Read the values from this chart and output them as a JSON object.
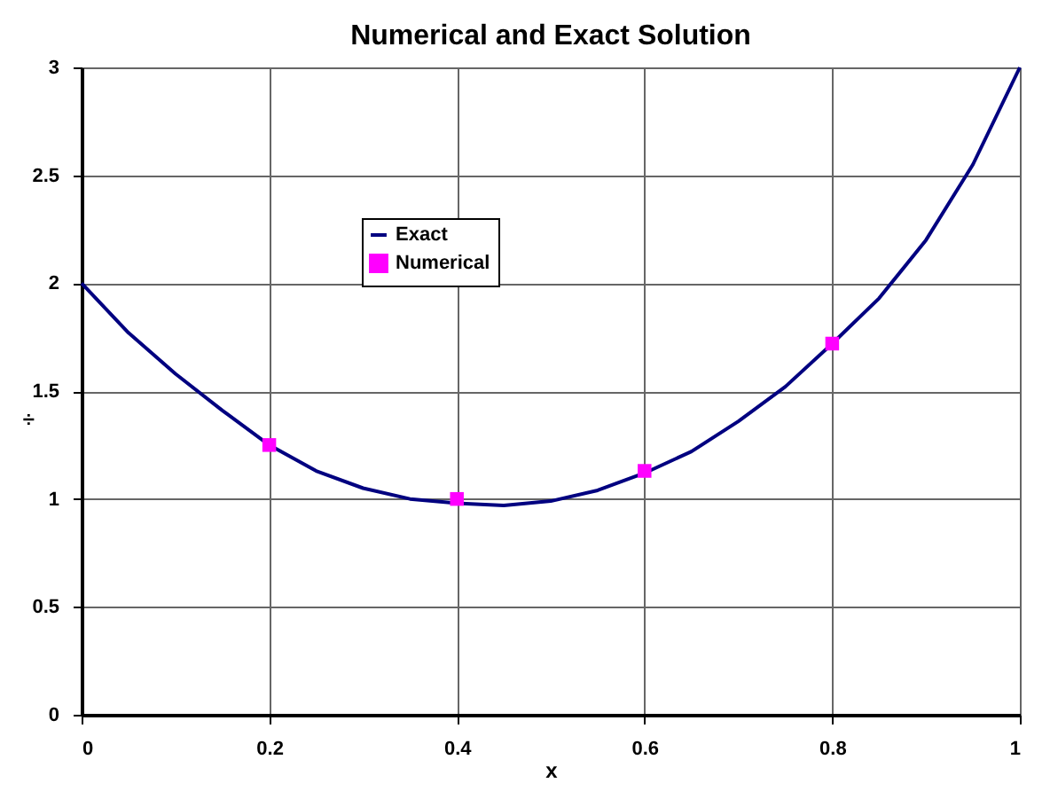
{
  "chart_data": {
    "type": "line",
    "title": "Numerical and Exact Solution",
    "xlabel": "x",
    "ylabel": "÷",
    "xlim": [
      0,
      1
    ],
    "xticks": [
      0,
      0.2,
      0.4,
      0.6,
      0.8,
      1
    ],
    "ylim": [
      0,
      3
    ],
    "yticks": [
      0,
      0.5,
      1,
      1.5,
      2,
      2.5,
      3
    ],
    "line_style": "solid",
    "grid": true,
    "legend": "top left",
    "series": [
      {
        "name": "Exact",
        "color": "#000080",
        "marker": "none",
        "x": [
          0,
          0.05,
          0.1,
          0.15,
          0.2,
          0.25,
          0.3,
          0.35,
          0.4,
          0.45,
          0.5,
          0.55,
          0.6,
          0.65,
          0.7,
          0.75,
          0.8,
          0.85,
          0.9,
          0.95,
          1
        ],
        "values": [
          2,
          1.77,
          1.58,
          1.41,
          1.25,
          1.13,
          1.05,
          1.0,
          0.98,
          0.97,
          0.99,
          1.04,
          1.12,
          1.22,
          1.36,
          1.52,
          1.72,
          1.93,
          2.2,
          2.55,
          3.0
        ]
      },
      {
        "name": "Numerical",
        "type": "scatter",
        "color": "#ff00ff",
        "marker": "square",
        "x": [
          0.2,
          0.4,
          0.6,
          0.8
        ],
        "values": [
          1.25,
          1.0,
          1.13,
          1.72
        ]
      }
    ]
  }
}
